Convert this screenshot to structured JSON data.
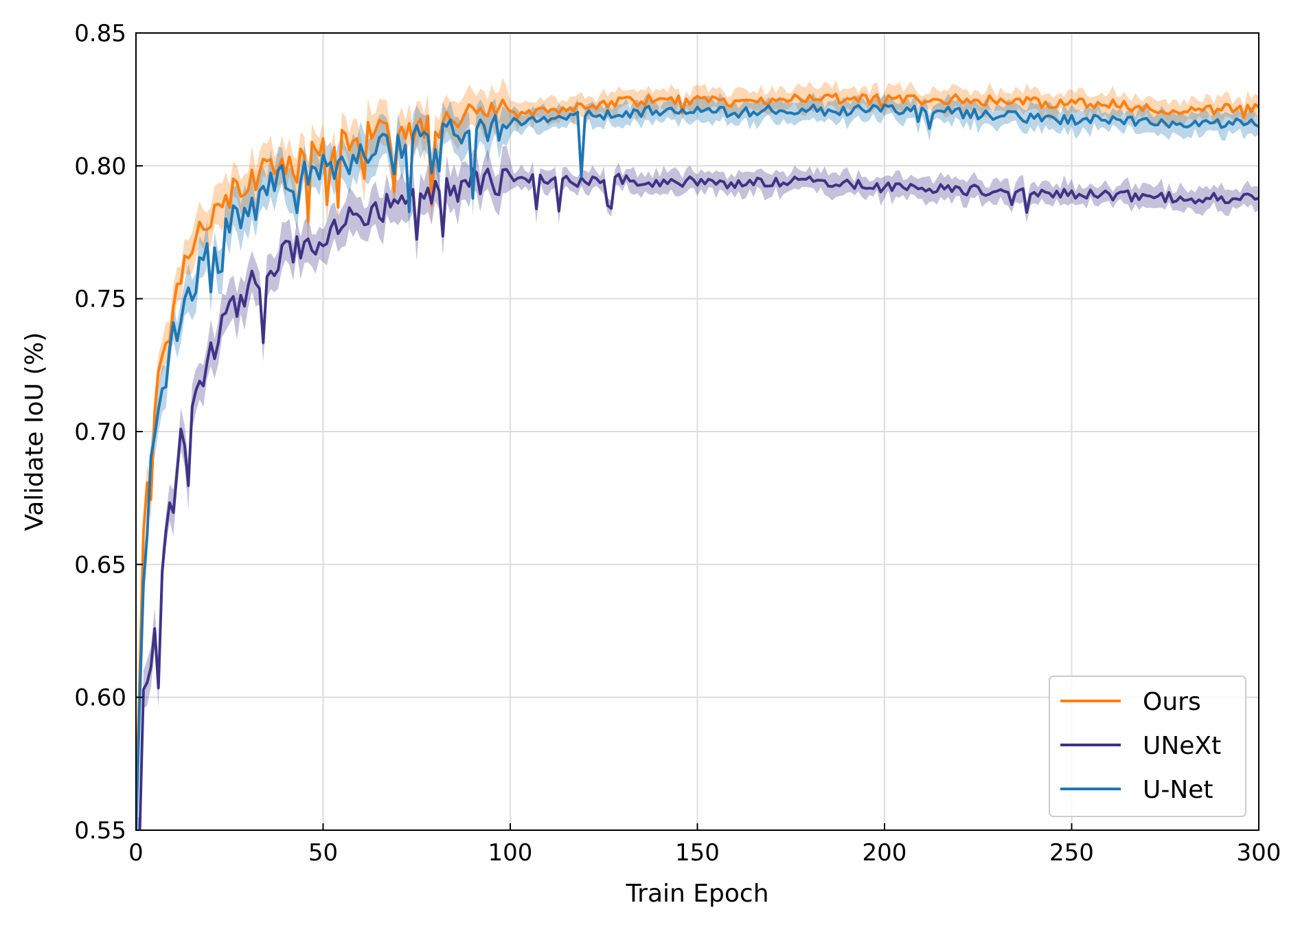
{
  "chart_data": {
    "type": "line",
    "xlabel": "Train Epoch",
    "ylabel": "Validate IoU (%)",
    "xlim": [
      0,
      300
    ],
    "ylim": [
      0.55,
      0.85
    ],
    "xticks": [
      0,
      50,
      100,
      150,
      200,
      250,
      300
    ],
    "xtick_labels": [
      "0",
      "50",
      "100",
      "150",
      "200",
      "250",
      "300"
    ],
    "yticks": [
      0.55,
      0.6,
      0.65,
      0.7,
      0.75,
      0.8,
      0.85
    ],
    "ytick_labels": [
      "0.55",
      "0.60",
      "0.65",
      "0.70",
      "0.75",
      "0.80",
      "0.85"
    ],
    "grid": true,
    "legend_position": "bottom-right",
    "series": [
      {
        "name": "Ours",
        "color": "#ff7f0e",
        "x": [
          0,
          2,
          4,
          6,
          8,
          10,
          12,
          15,
          20,
          25,
          30,
          35,
          40,
          45,
          50,
          60,
          70,
          80,
          90,
          100,
          110,
          120,
          130,
          140,
          150,
          160,
          170,
          180,
          190,
          200,
          220,
          240,
          260,
          280,
          300
        ],
        "y": [
          0.56,
          0.66,
          0.7,
          0.72,
          0.73,
          0.745,
          0.76,
          0.772,
          0.782,
          0.79,
          0.795,
          0.798,
          0.8,
          0.802,
          0.805,
          0.81,
          0.813,
          0.815,
          0.818,
          0.82,
          0.821,
          0.822,
          0.824,
          0.825,
          0.825,
          0.824,
          0.825,
          0.826,
          0.825,
          0.825,
          0.825,
          0.824,
          0.823,
          0.821,
          0.822
        ]
      },
      {
        "name": "UNeXt",
        "color": "#3f3385",
        "x": [
          0,
          2,
          4,
          6,
          8,
          10,
          12,
          15,
          20,
          25,
          30,
          35,
          40,
          45,
          50,
          60,
          70,
          80,
          90,
          100,
          110,
          120,
          130,
          140,
          150,
          160,
          170,
          180,
          190,
          200,
          220,
          240,
          260,
          280,
          300
        ],
        "y": [
          0.55,
          0.6,
          0.615,
          0.63,
          0.66,
          0.675,
          0.695,
          0.71,
          0.73,
          0.745,
          0.755,
          0.762,
          0.767,
          0.77,
          0.774,
          0.782,
          0.787,
          0.792,
          0.793,
          0.795,
          0.795,
          0.794,
          0.795,
          0.794,
          0.794,
          0.793,
          0.794,
          0.794,
          0.793,
          0.792,
          0.791,
          0.79,
          0.789,
          0.788,
          0.788
        ]
      },
      {
        "name": "U-Net",
        "color": "#1f77b4",
        "x": [
          0,
          2,
          4,
          6,
          8,
          10,
          12,
          15,
          20,
          25,
          30,
          35,
          40,
          45,
          50,
          60,
          70,
          80,
          90,
          100,
          110,
          120,
          130,
          140,
          150,
          160,
          170,
          180,
          190,
          200,
          220,
          240,
          260,
          280,
          300
        ],
        "y": [
          0.55,
          0.64,
          0.69,
          0.705,
          0.72,
          0.735,
          0.745,
          0.755,
          0.768,
          0.778,
          0.785,
          0.792,
          0.795,
          0.798,
          0.8,
          0.804,
          0.808,
          0.811,
          0.814,
          0.816,
          0.817,
          0.819,
          0.82,
          0.821,
          0.821,
          0.82,
          0.821,
          0.821,
          0.821,
          0.821,
          0.82,
          0.818,
          0.817,
          0.816,
          0.816
        ]
      }
    ]
  }
}
